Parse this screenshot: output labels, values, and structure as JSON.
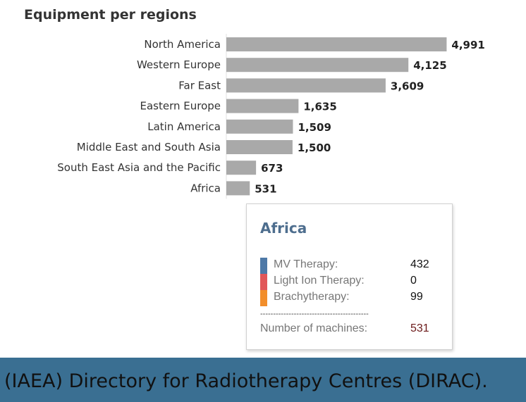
{
  "chart_data": {
    "type": "bar",
    "orientation": "horizontal",
    "title": "Equipment per regions",
    "categories": [
      "North America",
      "Western Europe",
      "Far East",
      "Eastern Europe",
      "Latin America",
      "Middle East and South Asia",
      "South East Asia and the Pacific",
      "Africa"
    ],
    "values": [
      4991,
      4125,
      3609,
      1635,
      1509,
      1500,
      673,
      531
    ],
    "value_labels": [
      "4,991",
      "4,125",
      "3,609",
      "1,635",
      "1,509",
      "1,500",
      "673",
      "531"
    ],
    "xlim": [
      0,
      5000
    ],
    "grid": false,
    "bar_color": "#a9a9a9"
  },
  "tooltip": {
    "title": "Africa",
    "rows": [
      {
        "label": "MV Therapy:",
        "value": "432",
        "color": "#4e79a7"
      },
      {
        "label": "Light Ion Therapy:",
        "value": "0",
        "color": "#e15759"
      },
      {
        "label": "Brachytherapy:",
        "value": "99",
        "color": "#f28e2b"
      }
    ],
    "separator": "------------------------------------------",
    "total_label": "Number of machines:",
    "total_value": "531"
  },
  "footer": {
    "text": "(IAEA) Directory for Radiotherapy Centres (DIRAC)."
  }
}
